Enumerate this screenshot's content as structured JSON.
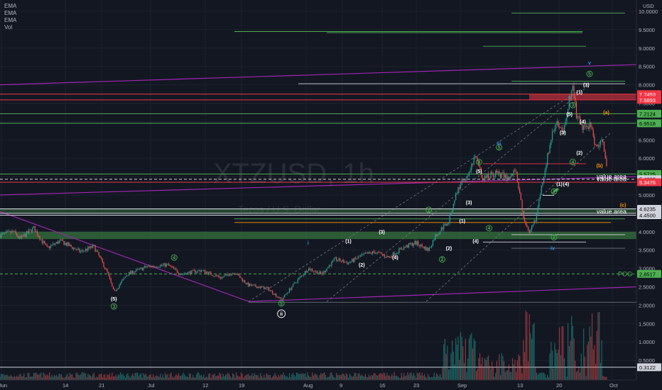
{
  "legend": [
    "EMA",
    "EMA",
    "EMA",
    "Vol"
  ],
  "watermark": {
    "symbol": "XTZUSD, 1h",
    "subtitle": "Tezos / U.S. Dollar"
  },
  "currency": "USD",
  "colors": {
    "background": "#131722",
    "up": "#26a69a",
    "down": "#ef5350",
    "green_level": "#4caf50",
    "red_level": "#f23645",
    "purple": "#9c27b0",
    "white_level": "#d1d4dc",
    "wave_green": "#4caf50",
    "wave_blue": "#2196f3",
    "wave_orange": "#ff9800"
  },
  "chart_data": {
    "type": "candlestick",
    "title": "XTZUSD, 1h",
    "xlabel": "",
    "ylabel": "",
    "ylim": [
      0.2,
      10.4
    ],
    "x_tick_labels": [
      "Jun",
      "14",
      "21",
      "Jul",
      "12",
      "19",
      "Aug",
      "9",
      "16",
      "23",
      "Sep",
      "13",
      "20",
      "Oct"
    ],
    "y_tick_labels": [
      "10.0000",
      "9.5000",
      "9.0000",
      "8.5000",
      "8.0000",
      "7.5000",
      "7.0000",
      "6.5000",
      "6.0000",
      "5.5000",
      "5.0000",
      "4.5000",
      "4.0000",
      "3.5000",
      "3.0000",
      "2.5000",
      "2.0000",
      "1.5000",
      "1.0000",
      "0.5000"
    ],
    "y_tick_values": [
      10,
      9.5,
      9,
      8.5,
      8,
      7.5,
      7,
      6.5,
      6,
      5.5,
      5,
      4.5,
      4,
      3.5,
      3,
      2.5,
      2,
      1.5,
      1,
      0.5
    ],
    "price_path": [
      {
        "t": 0,
        "p": 3.9
      },
      {
        "t": 2,
        "p": 4.0
      },
      {
        "t": 3,
        "p": 3.8
      },
      {
        "t": 5,
        "p": 4.1
      },
      {
        "t": 7,
        "p": 3.55
      },
      {
        "t": 9,
        "p": 3.75
      },
      {
        "t": 12,
        "p": 3.45
      },
      {
        "t": 14,
        "p": 3.6
      },
      {
        "t": 16,
        "p": 2.9
      },
      {
        "t": 17,
        "p": 2.35
      },
      {
        "t": 19,
        "p": 2.85
      },
      {
        "t": 22,
        "p": 3.05
      },
      {
        "t": 25,
        "p": 3.1
      },
      {
        "t": 27,
        "p": 2.85
      },
      {
        "t": 30,
        "p": 2.95
      },
      {
        "t": 33,
        "p": 2.75
      },
      {
        "t": 35,
        "p": 2.9
      },
      {
        "t": 37,
        "p": 2.55
      },
      {
        "t": 40,
        "p": 2.45
      },
      {
        "t": 42,
        "p": 2.15
      },
      {
        "t": 44,
        "p": 2.6
      },
      {
        "t": 46,
        "p": 3.0
      },
      {
        "t": 48,
        "p": 2.85
      },
      {
        "t": 50,
        "p": 3.25
      },
      {
        "t": 52,
        "p": 3.15
      },
      {
        "t": 54,
        "p": 3.35
      },
      {
        "t": 56,
        "p": 3.45
      },
      {
        "t": 58,
        "p": 3.3
      },
      {
        "t": 60,
        "p": 3.55
      },
      {
        "t": 62,
        "p": 3.7
      },
      {
        "t": 64,
        "p": 3.5
      },
      {
        "t": 65,
        "p": 3.9
      },
      {
        "t": 67,
        "p": 4.3
      },
      {
        "t": 68,
        "p": 5.0
      },
      {
        "t": 69,
        "p": 5.4
      },
      {
        "t": 70,
        "p": 5.6
      },
      {
        "t": 71,
        "p": 6.05
      },
      {
        "t": 72,
        "p": 5.45
      },
      {
        "t": 74,
        "p": 5.6
      },
      {
        "t": 76,
        "p": 5.45
      },
      {
        "t": 77,
        "p": 5.7
      },
      {
        "t": 78,
        "p": 4.5
      },
      {
        "t": 79,
        "p": 3.9
      },
      {
        "t": 80,
        "p": 4.4
      },
      {
        "t": 81,
        "p": 5.4
      },
      {
        "t": 82,
        "p": 6.3
      },
      {
        "t": 83,
        "p": 7.05
      },
      {
        "t": 84,
        "p": 6.6
      },
      {
        "t": 85,
        "p": 7.6
      },
      {
        "t": 85.5,
        "p": 8.0
      },
      {
        "t": 86,
        "p": 7.2
      },
      {
        "t": 87,
        "p": 6.8
      },
      {
        "t": 88,
        "p": 6.9
      },
      {
        "t": 89,
        "p": 6.3
      },
      {
        "t": 90,
        "p": 6.5
      },
      {
        "t": 90.7,
        "p": 5.5
      }
    ],
    "levels": [
      {
        "value": 7.7453,
        "label": "7.7453",
        "color": "#f23645",
        "tag_bg": "#f23645",
        "tag_fg": "#ffffff"
      },
      {
        "value": 7.5893,
        "label": "7.5893",
        "color": "#f23645",
        "tag_bg": "#f23645",
        "tag_fg": "#ffffff"
      },
      {
        "value": 7.2124,
        "label": "7.2124",
        "color": "#4caf50",
        "tag_bg": "#4caf50",
        "tag_fg": "#000000"
      },
      {
        "value": 6.9518,
        "label": "6.9518",
        "color": "#4caf50",
        "tag_bg": "#4caf50",
        "tag_fg": "#000000"
      },
      {
        "value": 5.5725,
        "label": "5.5725",
        "color": "#4caf50",
        "tag_bg": "#4caf50",
        "tag_fg": "#000000"
      },
      {
        "value": 5.4302,
        "label": "5.4302",
        "color": "#d1d4dc",
        "tag_bg": "#d1d4dc",
        "tag_fg": "#000000"
      },
      {
        "value": 5.3476,
        "label": "5.3476",
        "color": "#f23645",
        "tag_bg": "#f23645",
        "tag_fg": "#ffffff"
      },
      {
        "value": 4.6235,
        "label": "4.6235",
        "color": "#d1d4dc",
        "tag_bg": "#d1d4dc",
        "tag_fg": "#000000"
      },
      {
        "value": 4.45,
        "label": "4.4500",
        "color": "#d1d4dc",
        "tag_bg": "#d1d4dc",
        "tag_fg": "#000000"
      },
      {
        "value": 2.8517,
        "label": "2.8517",
        "color": "#4caf50",
        "tag_bg": "#4caf50",
        "tag_fg": "#000000"
      },
      {
        "value": 0.3122,
        "label": "0.3122",
        "color": "#d1d4dc",
        "tag_bg": "#d1d4dc",
        "tag_fg": "#000000"
      }
    ],
    "zone_labels": [
      {
        "text": "value area",
        "value": 5.5
      },
      {
        "text": "value area",
        "value": 5.43
      },
      {
        "text": "value area",
        "value": 4.55
      },
      {
        "text": "POG",
        "value": 2.85
      }
    ],
    "wave_labels": [
      {
        "text": "(5)",
        "t": 17,
        "p": 2.12,
        "color": "#ffffff"
      },
      {
        "text": "3",
        "t": 17,
        "p": 1.92,
        "color": "#4caf50"
      },
      {
        "text": "4",
        "t": 26,
        "p": 3.25,
        "color": "#4caf50"
      },
      {
        "text": "5",
        "t": 42,
        "p": 2.0,
        "color": "#4caf50"
      },
      {
        "text": "ii",
        "t": 42,
        "p": 1.72,
        "color": "#ffffff"
      },
      {
        "text": "i",
        "t": 46,
        "p": 3.65,
        "color": "#2196f3"
      },
      {
        "text": "(1)",
        "t": 52,
        "p": 3.7,
        "color": "#ffffff"
      },
      {
        "text": "(3)",
        "t": 57,
        "p": 3.95,
        "color": "#ffffff"
      },
      {
        "text": "(2)",
        "t": 54,
        "p": 3.05,
        "color": "#ffffff"
      },
      {
        "text": "(4)",
        "t": 59,
        "p": 3.25,
        "color": "#ffffff"
      },
      {
        "text": "2",
        "t": 66,
        "p": 3.2,
        "color": "#4caf50"
      },
      {
        "text": "(1)",
        "t": 69,
        "p": 4.25,
        "color": "#ffffff"
      },
      {
        "text": "(2)",
        "t": 67,
        "p": 3.5,
        "color": "#ffffff"
      },
      {
        "text": "1",
        "t": 64,
        "p": 4.55,
        "color": "#4caf50"
      },
      {
        "text": "(3)",
        "t": 70,
        "p": 4.75,
        "color": "#ffffff"
      },
      {
        "text": "(4)",
        "t": 71,
        "p": 3.7,
        "color": "#ffffff"
      },
      {
        "text": "3",
        "t": 71.5,
        "p": 5.85,
        "color": "#4caf50"
      },
      {
        "text": "(5)",
        "t": 71.5,
        "p": 5.6,
        "color": "#ffffff"
      },
      {
        "text": "5",
        "t": 74.5,
        "p": 6.25,
        "color": "#4caf50"
      },
      {
        "text": "iii",
        "t": 74.5,
        "p": 6.35,
        "color": "#2196f3"
      },
      {
        "text": "4",
        "t": 73,
        "p": 4.05,
        "color": "#4caf50"
      },
      {
        "text": "iv",
        "t": 82.5,
        "p": 3.5,
        "color": "#2196f3"
      },
      {
        "text": "2",
        "t": 82.7,
        "p": 3.8,
        "color": "#4caf50"
      },
      {
        "text": "1",
        "t": 82.7,
        "p": 5.05,
        "color": "#4caf50"
      },
      {
        "text": "(1)",
        "t": 83.5,
        "p": 5.25,
        "color": "#ffffff"
      },
      {
        "text": "(4)",
        "t": 84.5,
        "p": 5.25,
        "color": "#ffffff"
      },
      {
        "text": "(3)",
        "t": 84,
        "p": 6.65,
        "color": "#ffffff"
      },
      {
        "text": "(2)",
        "t": 86.5,
        "p": 6.1,
        "color": "#ffffff"
      },
      {
        "text": "4",
        "t": 85.5,
        "p": 5.85,
        "color": "#4caf50"
      },
      {
        "text": "3",
        "t": 85.5,
        "p": 7.4,
        "color": "#4caf50"
      },
      {
        "text": "(5)",
        "t": 85,
        "p": 7.15,
        "color": "#ffffff"
      },
      {
        "text": "(1)",
        "t": 86.5,
        "p": 7.75,
        "color": "#ffffff"
      },
      {
        "text": "(3)",
        "t": 87.5,
        "p": 7.95,
        "color": "#ffffff"
      },
      {
        "text": "(4)",
        "t": 87,
        "p": 6.95,
        "color": "#ffffff"
      },
      {
        "text": "5",
        "t": 88,
        "p": 8.25,
        "color": "#4caf50"
      },
      {
        "text": "v",
        "t": 88,
        "p": 8.55,
        "color": "#2196f3"
      },
      {
        "text": "(a)",
        "t": 90.5,
        "p": 7.2,
        "color": "#ff9800"
      },
      {
        "text": "(b)",
        "t": 89.5,
        "p": 5.75,
        "color": "#ff9800"
      },
      {
        "text": "(c)",
        "t": 93,
        "p": 4.68,
        "color": "#ff9800"
      }
    ],
    "volume_note": "volume histogram in lower pane"
  }
}
